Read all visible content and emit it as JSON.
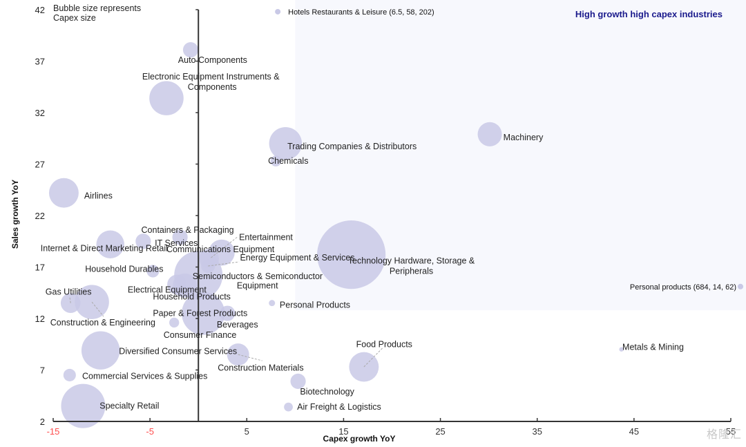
{
  "chart_data": {
    "type": "scatter",
    "subtype": "bubble",
    "title": "",
    "xlabel": "Capex growth YoY",
    "ylabel": "Sales growth YoY",
    "xlim": [
      -15,
      55
    ],
    "ylim": [
      2,
      42
    ],
    "xticks": [
      -15,
      -5,
      5,
      15,
      25,
      35,
      45,
      55
    ],
    "yticks": [
      2,
      7,
      12,
      17,
      22,
      27,
      32,
      37,
      42
    ],
    "negative_tick_color": "#ff4d4d",
    "bubble_color": "#c9c9e6",
    "highlight_region": {
      "label": "High growth high capex industries",
      "x_from": 10,
      "x_to": 55,
      "y_from": 12.8,
      "y_to": 42,
      "fill": "#f7f8fd",
      "label_color": "#1a1a8c"
    },
    "annotation_note": "Bubble size represents\nCapex size",
    "outliers": [
      {
        "name": "Hotels Restaurants & Leisure (6.5, 58, 202)",
        "x": 8.2,
        "y": 41.8
      },
      {
        "name": "Personal products (684, 14, 62)",
        "x": 56,
        "y": 15.1
      }
    ],
    "points": [
      {
        "name": "Auto Components",
        "x": -0.8,
        "y": 38.1,
        "size": 12
      },
      {
        "name": "Electronic Equipment Instruments & Components",
        "x": -3.3,
        "y": 33.4,
        "size": 60
      },
      {
        "name": "Trading Companies & Distributors",
        "x": 9.0,
        "y": 29.0,
        "size": 55
      },
      {
        "name": "Chemicals",
        "x": 8.0,
        "y": 27.3,
        "size": 6
      },
      {
        "name": "Machinery",
        "x": 30.1,
        "y": 29.9,
        "size": 30
      },
      {
        "name": "Airlines",
        "x": -13.9,
        "y": 24.2,
        "size": 45
      },
      {
        "name": "Containers & Packaging",
        "x": -1.9,
        "y": 19.9,
        "size": 12
      },
      {
        "name": "IT Services",
        "x": -5.7,
        "y": 19.5,
        "size": 12
      },
      {
        "name": "Internet & Direct Marketing Retail",
        "x": -9.1,
        "y": 19.2,
        "size": 40
      },
      {
        "name": "Communications Equipment",
        "x": 2.4,
        "y": 18.4,
        "size": 35
      },
      {
        "name": "Entertainment",
        "x": 1.1,
        "y": 17.8,
        "size": 20
      },
      {
        "name": "Energy Equipment & Services",
        "x": 1.0,
        "y": 17.1,
        "size": 10
      },
      {
        "name": "Household Durables",
        "x": -4.7,
        "y": 16.6,
        "size": 8
      },
      {
        "name": "Semiconductors & Semiconductor Equipment",
        "x": 0.0,
        "y": 16.2,
        "size": 120
      },
      {
        "name": "Technology Hardware, Storage & Peripherals",
        "x": 15.8,
        "y": 18.2,
        "size": 240
      },
      {
        "name": "Electrical Equipment",
        "x": -2.2,
        "y": 15.3,
        "size": 20
      },
      {
        "name": "Household Products",
        "x": -1.4,
        "y": 15.2,
        "size": 30
      },
      {
        "name": "Gas Utilities",
        "x": -13.2,
        "y": 13.5,
        "size": 20
      },
      {
        "name": "Construction & Engineering",
        "x": -11.0,
        "y": 13.6,
        "size": 60
      },
      {
        "name": "Paper & Forest Products",
        "x": 0.5,
        "y": 12.5,
        "size": 95
      },
      {
        "name": "Beverages",
        "x": 3.0,
        "y": 12.5,
        "size": 12
      },
      {
        "name": "Personal Products",
        "x": 7.6,
        "y": 13.5,
        "size": 2
      },
      {
        "name": "Consumer Finance",
        "x": -2.5,
        "y": 11.6,
        "size": 5
      },
      {
        "name": "Diversified Consumer Services",
        "x": -10.1,
        "y": 8.9,
        "size": 75
      },
      {
        "name": "Construction Materials",
        "x": 4.1,
        "y": 8.5,
        "size": 25
      },
      {
        "name": "Food Products",
        "x": 17.1,
        "y": 7.3,
        "size": 45
      },
      {
        "name": "Metals & Mining",
        "x": 43.7,
        "y": 9.0,
        "size": 1
      },
      {
        "name": "Commercial Services & Supplies",
        "x": -13.3,
        "y": 6.5,
        "size": 8
      },
      {
        "name": "Biotechnology",
        "x": 10.3,
        "y": 5.9,
        "size": 12
      },
      {
        "name": "Air Freight & Logistics",
        "x": 9.3,
        "y": 3.4,
        "size": 4
      },
      {
        "name": "Specialty Retail",
        "x": -11.9,
        "y": 3.5,
        "size": 100
      }
    ],
    "labels": [
      {
        "text": "Auto Components",
        "x": -2.1,
        "y": 37.1,
        "anchor": "start"
      },
      {
        "text": "Electronic Equipment Instruments &",
        "x": -5.8,
        "y": 35.5,
        "anchor": "start"
      },
      {
        "text": "Components",
        "x": -1.1,
        "y": 34.5,
        "anchor": "start"
      },
      {
        "text": "Trading Companies & Distributors",
        "x": 9.2,
        "y": 28.7,
        "anchor": "start"
      },
      {
        "text": "Chemicals",
        "x": 7.2,
        "y": 27.3,
        "anchor": "start"
      },
      {
        "text": "Machinery",
        "x": 31.5,
        "y": 29.6,
        "anchor": "start"
      },
      {
        "text": "Airlines",
        "x": -11.8,
        "y": 23.9,
        "anchor": "start"
      },
      {
        "text": "Containers & Packaging",
        "x": -5.9,
        "y": 20.6,
        "anchor": "start"
      },
      {
        "text": "IT Services",
        "x": -4.5,
        "y": 19.3,
        "anchor": "start"
      },
      {
        "text": "Internet & Direct Marketing Retail",
        "x": -16.3,
        "y": 18.8,
        "anchor": "start"
      },
      {
        "text": "Entertainment",
        "x": 4.2,
        "y": 19.9,
        "anchor": "start"
      },
      {
        "text": "Communications Equipment",
        "x": -3.3,
        "y": 18.7,
        "anchor": "start"
      },
      {
        "text": "Energy Equipment & Services",
        "x": 4.3,
        "y": 17.9,
        "anchor": "start"
      },
      {
        "text": "Household Durables",
        "x": -11.7,
        "y": 16.8,
        "anchor": "start"
      },
      {
        "text": "Technology Hardware, Storage &",
        "x": 22.0,
        "y": 17.6,
        "anchor": "middle"
      },
      {
        "text": "Peripherals",
        "x": 22.0,
        "y": 16.6,
        "anchor": "middle"
      },
      {
        "text": "Semiconductors & Semiconductor",
        "x": -0.6,
        "y": 16.1,
        "anchor": "start"
      },
      {
        "text": "Equipment",
        "x": 6.1,
        "y": 15.2,
        "anchor": "middle"
      },
      {
        "text": "Electrical Equipment",
        "x": -7.3,
        "y": 14.8,
        "anchor": "start"
      },
      {
        "text": "Household Products",
        "x": -4.7,
        "y": 14.1,
        "anchor": "start"
      },
      {
        "text": "Gas Utilities",
        "x": -15.8,
        "y": 14.6,
        "anchor": "start"
      },
      {
        "text": "Personal Products",
        "x": 8.4,
        "y": 13.3,
        "anchor": "start"
      },
      {
        "text": "Paper & Forest Products",
        "x": -4.7,
        "y": 12.5,
        "anchor": "start"
      },
      {
        "text": "Construction & Engineering",
        "x": -15.3,
        "y": 11.6,
        "anchor": "start"
      },
      {
        "text": "Beverages",
        "x": 1.9,
        "y": 11.4,
        "anchor": "start"
      },
      {
        "text": "Consumer Finance",
        "x": -3.6,
        "y": 10.4,
        "anchor": "start"
      },
      {
        "text": "Food Products",
        "x": 16.3,
        "y": 9.5,
        "anchor": "start"
      },
      {
        "text": "Metals & Mining",
        "x": 43.8,
        "y": 9.2,
        "anchor": "start"
      },
      {
        "text": "Diversified Consumer Services",
        "x": -8.2,
        "y": 8.8,
        "anchor": "start"
      },
      {
        "text": "Construction Materials",
        "x": 2.0,
        "y": 7.2,
        "anchor": "start"
      },
      {
        "text": "Commercial Services & Supplies",
        "x": -12.0,
        "y": 6.4,
        "anchor": "start"
      },
      {
        "text": "Biotechnology",
        "x": 10.5,
        "y": 4.9,
        "anchor": "start"
      },
      {
        "text": "Air Freight & Logistics",
        "x": 10.2,
        "y": 3.4,
        "anchor": "start"
      },
      {
        "text": "Specialty Retail",
        "x": -10.2,
        "y": 3.5,
        "anchor": "start"
      }
    ],
    "leader_lines": [
      {
        "from": [
          1.3,
          17.9
        ],
        "to": [
          4.0,
          19.9
        ]
      },
      {
        "from": [
          1.0,
          17.1
        ],
        "to": [
          4.2,
          17.5
        ]
      },
      {
        "from": [
          -11.0,
          13.6
        ],
        "to": [
          -9.8,
          12.2
        ]
      },
      {
        "from": [
          -13.2,
          13.5
        ],
        "to": [
          -13.3,
          14.1
        ]
      },
      {
        "from": [
          4.1,
          8.5
        ],
        "to": [
          6.6,
          7.9
        ]
      },
      {
        "from": [
          17.1,
          7.3
        ],
        "to": [
          19.1,
          9.2
        ]
      }
    ]
  },
  "watermark": "格隆汇"
}
